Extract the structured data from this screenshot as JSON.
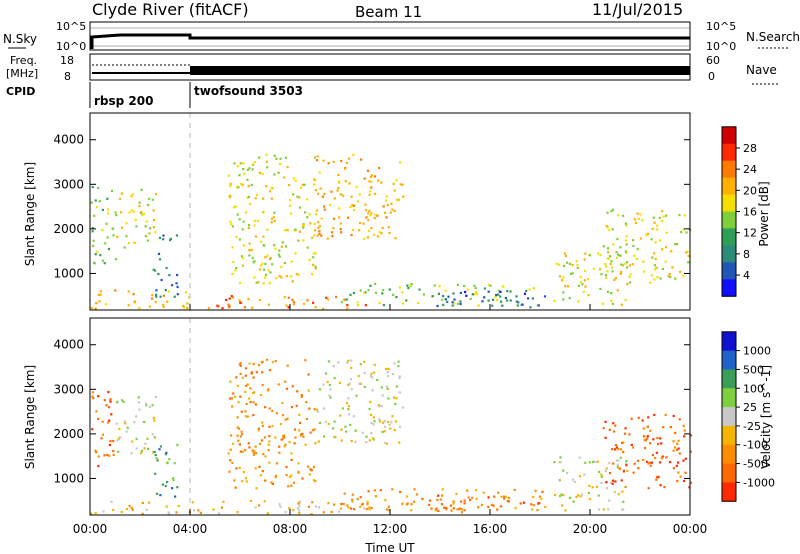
{
  "header": {
    "station": "Clyde River (fitACF)",
    "beam": "Beam 11",
    "date": "11/Jul/2015"
  },
  "chart_data": [
    {
      "type": "line",
      "panel": "noise",
      "left_label": "N.Sky",
      "right_label": "N.Search",
      "left_ticks": [
        "10^5",
        "10^0"
      ],
      "right_ticks": [
        "10^5",
        "10^0"
      ]
    },
    {
      "type": "line",
      "panel": "frequency",
      "left_label_lines": [
        "Freq.",
        "[MHz]"
      ],
      "right_label": "Nave",
      "left_ticks": [
        "18",
        "8"
      ],
      "right_ticks": [
        "60",
        "0"
      ]
    },
    {
      "type": "table",
      "panel": "cpid",
      "label": "CPID",
      "segments": [
        {
          "start_hour": 0,
          "end_hour": 4,
          "name": "rbsp 200"
        },
        {
          "start_hour": 4,
          "end_hour": 24,
          "name": "twofsound 3503"
        }
      ]
    },
    {
      "type": "heatmap",
      "panel": "power",
      "ylabel": "Slant Range [km]",
      "yticks": [
        1000,
        2000,
        3000,
        4000
      ],
      "ylim": [
        180,
        4600
      ],
      "xlim": [
        0,
        24
      ],
      "colorbar_label": "Power [dB]",
      "colorbar_ticks": [
        "28",
        "24",
        "20",
        "16",
        "12",
        "8",
        "4"
      ],
      "colorbar_colors": [
        "#d00000",
        "#ff2a00",
        "#ff7a00",
        "#ffb000",
        "#f4e000",
        "#7fcf3a",
        "#2f9e58",
        "#2b8a78",
        "#1f56b8",
        "#1010ff"
      ],
      "echo_regions": [
        {
          "t0": 0.0,
          "t1": 1.0,
          "r0": 1200,
          "r1": 3000,
          "level": 5
        },
        {
          "t0": 1.0,
          "t1": 2.6,
          "r0": 1500,
          "r1": 2900,
          "level": 4
        },
        {
          "t0": 2.5,
          "t1": 3.5,
          "r0": 500,
          "r1": 1900,
          "level": 7
        },
        {
          "t0": 0.0,
          "t1": 4.0,
          "r0": 220,
          "r1": 650,
          "level": 3
        },
        {
          "t0": 4.0,
          "t1": 11.0,
          "r0": 220,
          "r1": 520,
          "level": 2
        },
        {
          "t0": 5.5,
          "t1": 9.0,
          "r0": 800,
          "r1": 3700,
          "level": 4
        },
        {
          "t0": 9.0,
          "t1": 12.5,
          "r0": 1800,
          "r1": 3700,
          "level": 3
        },
        {
          "t0": 10.0,
          "t1": 18.2,
          "r0": 300,
          "r1": 800,
          "level": 5
        },
        {
          "t0": 13.5,
          "t1": 18.2,
          "r0": 250,
          "r1": 650,
          "level": 8
        },
        {
          "t0": 18.5,
          "t1": 21.5,
          "r0": 300,
          "r1": 1500,
          "level": 4
        },
        {
          "t0": 20.5,
          "t1": 24.0,
          "r0": 800,
          "r1": 2500,
          "level": 4
        }
      ]
    },
    {
      "type": "heatmap",
      "panel": "velocity",
      "ylabel": "Slant Range [km]",
      "yticks": [
        1000,
        2000,
        3000,
        4000
      ],
      "ylim": [
        180,
        4600
      ],
      "xlim": [
        0,
        24
      ],
      "xlabel": "Time UT",
      "xticks": [
        "00:00",
        "04:00",
        "08:00",
        "12:00",
        "16:00",
        "20:00",
        "00:00"
      ],
      "colorbar_label": "Velocity [m s^-1]",
      "colorbar_ticks": [
        "1000",
        "500",
        "100",
        "25",
        "-25",
        "-100",
        "-500",
        "-1000"
      ],
      "colorbar_colors": [
        "#1010d0",
        "#1f63c8",
        "#3a9e58",
        "#7fd040",
        "#c8c8c8",
        "#f4b400",
        "#ff8c00",
        "#ff6a00",
        "#ff2a00"
      ],
      "echo_regions": [
        {
          "t0": 0.0,
          "t1": 1.0,
          "r0": 1300,
          "r1": 3000,
          "level": 7
        },
        {
          "t0": 1.0,
          "t1": 2.6,
          "r0": 1500,
          "r1": 2900,
          "level": 4
        },
        {
          "t0": 2.5,
          "t1": 3.5,
          "r0": 500,
          "r1": 1800,
          "level": 2
        },
        {
          "t0": 0.0,
          "t1": 11.0,
          "r0": 220,
          "r1": 520,
          "level": 5
        },
        {
          "t0": 5.5,
          "t1": 9.0,
          "r0": 800,
          "r1": 3700,
          "level": 6
        },
        {
          "t0": 9.0,
          "t1": 12.5,
          "r0": 1800,
          "r1": 3700,
          "level": 4
        },
        {
          "t0": 10.0,
          "t1": 18.2,
          "r0": 300,
          "r1": 800,
          "level": 6
        },
        {
          "t0": 13.5,
          "t1": 18.2,
          "r0": 250,
          "r1": 650,
          "level": 7
        },
        {
          "t0": 18.5,
          "t1": 21.5,
          "r0": 300,
          "r1": 1500,
          "level": 4
        },
        {
          "t0": 20.5,
          "t1": 24.0,
          "r0": 800,
          "r1": 2500,
          "level": 7
        }
      ]
    }
  ]
}
